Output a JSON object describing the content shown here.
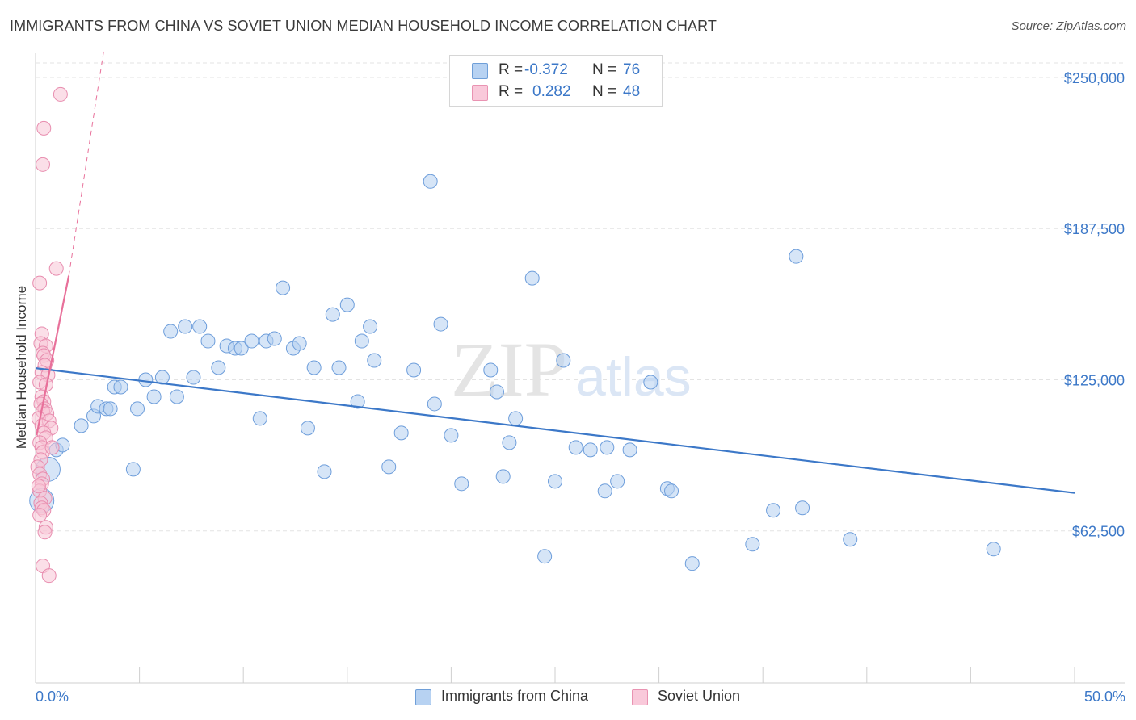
{
  "title": "IMMIGRANTS FROM CHINA VS SOVIET UNION MEDIAN HOUSEHOLD INCOME CORRELATION CHART",
  "source": "Source: ZipAtlas.com",
  "colors": {
    "blue": "#3c78c8",
    "blue_fill": "#a9c8ef",
    "pink": "#e8709a",
    "pink_fill": "#f6bcd0",
    "grid": "#e3e3e3"
  },
  "legend": {
    "series": [
      {
        "r_label": "R =",
        "r_value": "-0.372",
        "n_label": "N =",
        "n_value": "76"
      },
      {
        "r_label": "R =",
        "r_value": "0.282",
        "n_label": "N =",
        "n_value": "48"
      }
    ]
  },
  "bottom_legend": {
    "china": "Immigrants from China",
    "soviet": "Soviet Union"
  },
  "watermark": {
    "zip": "ZIP",
    "atlas": "atlas"
  },
  "chart_data": {
    "type": "scatter",
    "title": "IMMIGRANTS FROM CHINA VS SOVIET UNION MEDIAN HOUSEHOLD INCOME CORRELATION CHART",
    "xlabel": "",
    "ylabel": "Median Household Income",
    "xlim": [
      0,
      50
    ],
    "ylim": [
      0,
      262000
    ],
    "x_tick_labels": [
      "0.0%",
      "50.0%"
    ],
    "y_ticks": [
      62500,
      125000,
      187500,
      250000
    ],
    "y_tick_labels": [
      "$62,500",
      "$125,000",
      "$187,500",
      "$250,000"
    ],
    "grid": true,
    "series": [
      {
        "name": "Immigrants from China",
        "color": "#3c78c8",
        "trend": {
          "x": [
            0,
            50
          ],
          "y": [
            129800,
            78200
          ]
        },
        "points": [
          {
            "x": 0.3,
            "y": 75000,
            "big": true
          },
          {
            "x": 0.6,
            "y": 88000,
            "big": true
          },
          {
            "x": 1.0,
            "y": 96000
          },
          {
            "x": 1.3,
            "y": 98000
          },
          {
            "x": 2.2,
            "y": 106000
          },
          {
            "x": 2.8,
            "y": 110000
          },
          {
            "x": 3.0,
            "y": 114000
          },
          {
            "x": 3.4,
            "y": 113000
          },
          {
            "x": 3.6,
            "y": 113000
          },
          {
            "x": 3.8,
            "y": 122000
          },
          {
            "x": 4.1,
            "y": 122000
          },
          {
            "x": 4.7,
            "y": 88000
          },
          {
            "x": 4.9,
            "y": 113000
          },
          {
            "x": 5.3,
            "y": 125000
          },
          {
            "x": 5.7,
            "y": 118000
          },
          {
            "x": 6.1,
            "y": 126000
          },
          {
            "x": 6.5,
            "y": 145000
          },
          {
            "x": 6.8,
            "y": 118000
          },
          {
            "x": 7.2,
            "y": 147000
          },
          {
            "x": 7.6,
            "y": 126000
          },
          {
            "x": 7.9,
            "y": 147000
          },
          {
            "x": 8.3,
            "y": 141000
          },
          {
            "x": 8.8,
            "y": 130000
          },
          {
            "x": 9.2,
            "y": 139000
          },
          {
            "x": 9.6,
            "y": 138000
          },
          {
            "x": 9.9,
            "y": 138000
          },
          {
            "x": 10.4,
            "y": 141000
          },
          {
            "x": 10.8,
            "y": 109000
          },
          {
            "x": 11.1,
            "y": 141000
          },
          {
            "x": 11.5,
            "y": 142000
          },
          {
            "x": 11.9,
            "y": 163000
          },
          {
            "x": 12.4,
            "y": 138000
          },
          {
            "x": 12.7,
            "y": 140000
          },
          {
            "x": 13.1,
            "y": 105000
          },
          {
            "x": 13.4,
            "y": 130000
          },
          {
            "x": 13.9,
            "y": 87000
          },
          {
            "x": 14.3,
            "y": 152000
          },
          {
            "x": 14.6,
            "y": 130000
          },
          {
            "x": 15.0,
            "y": 156000
          },
          {
            "x": 15.5,
            "y": 116000
          },
          {
            "x": 15.7,
            "y": 141000
          },
          {
            "x": 16.1,
            "y": 147000
          },
          {
            "x": 16.3,
            "y": 133000
          },
          {
            "x": 17.0,
            "y": 89000
          },
          {
            "x": 17.6,
            "y": 103000
          },
          {
            "x": 18.2,
            "y": 129000
          },
          {
            "x": 19.0,
            "y": 207000
          },
          {
            "x": 19.2,
            "y": 115000
          },
          {
            "x": 19.5,
            "y": 148000
          },
          {
            "x": 20.0,
            "y": 102000
          },
          {
            "x": 20.5,
            "y": 82000
          },
          {
            "x": 21.9,
            "y": 129000
          },
          {
            "x": 22.2,
            "y": 120000
          },
          {
            "x": 22.5,
            "y": 85000
          },
          {
            "x": 22.8,
            "y": 99000
          },
          {
            "x": 23.1,
            "y": 109000
          },
          {
            "x": 23.9,
            "y": 167000
          },
          {
            "x": 24.5,
            "y": 52000
          },
          {
            "x": 25.4,
            "y": 133000
          },
          {
            "x": 25.0,
            "y": 83000
          },
          {
            "x": 26.0,
            "y": 97000
          },
          {
            "x": 26.7,
            "y": 96000
          },
          {
            "x": 27.4,
            "y": 79000
          },
          {
            "x": 27.5,
            "y": 97000
          },
          {
            "x": 28.0,
            "y": 83000
          },
          {
            "x": 28.6,
            "y": 96000
          },
          {
            "x": 29.6,
            "y": 124000
          },
          {
            "x": 30.4,
            "y": 80000
          },
          {
            "x": 30.6,
            "y": 79000
          },
          {
            "x": 31.6,
            "y": 49000
          },
          {
            "x": 34.5,
            "y": 57000
          },
          {
            "x": 35.5,
            "y": 71000
          },
          {
            "x": 36.6,
            "y": 176000
          },
          {
            "x": 36.9,
            "y": 72000
          },
          {
            "x": 39.2,
            "y": 59000
          },
          {
            "x": 46.1,
            "y": 55000
          }
        ]
      },
      {
        "name": "Soviet Union",
        "color": "#e8709a",
        "trend_solid": {
          "x": [
            0.05,
            1.6
          ],
          "y": [
            102000,
            168000
          ]
        },
        "trend_dashed": {
          "x": [
            1.6,
            3.3
          ],
          "y": [
            168000,
            262000
          ]
        },
        "points": [
          {
            "x": 1.2,
            "y": 243000
          },
          {
            "x": 0.4,
            "y": 229000
          },
          {
            "x": 0.35,
            "y": 214000
          },
          {
            "x": 1.0,
            "y": 171000
          },
          {
            "x": 0.2,
            "y": 165000
          },
          {
            "x": 0.3,
            "y": 144000
          },
          {
            "x": 0.25,
            "y": 140000
          },
          {
            "x": 0.5,
            "y": 139000
          },
          {
            "x": 0.35,
            "y": 136000
          },
          {
            "x": 0.4,
            "y": 135000
          },
          {
            "x": 0.55,
            "y": 133000
          },
          {
            "x": 0.45,
            "y": 131000
          },
          {
            "x": 0.3,
            "y": 128000
          },
          {
            "x": 0.6,
            "y": 127000
          },
          {
            "x": 0.2,
            "y": 124000
          },
          {
            "x": 0.5,
            "y": 123000
          },
          {
            "x": 0.3,
            "y": 118000
          },
          {
            "x": 0.4,
            "y": 116000
          },
          {
            "x": 0.25,
            "y": 115000
          },
          {
            "x": 0.45,
            "y": 113000
          },
          {
            "x": 0.35,
            "y": 112000
          },
          {
            "x": 0.55,
            "y": 111000
          },
          {
            "x": 0.15,
            "y": 109000
          },
          {
            "x": 0.65,
            "y": 108000
          },
          {
            "x": 0.3,
            "y": 106000
          },
          {
            "x": 0.75,
            "y": 105000
          },
          {
            "x": 0.4,
            "y": 103000
          },
          {
            "x": 0.5,
            "y": 101000
          },
          {
            "x": 0.2,
            "y": 99000
          },
          {
            "x": 0.3,
            "y": 97000
          },
          {
            "x": 0.35,
            "y": 95000
          },
          {
            "x": 0.8,
            "y": 97000
          },
          {
            "x": 0.25,
            "y": 92000
          },
          {
            "x": 0.1,
            "y": 89000
          },
          {
            "x": 0.2,
            "y": 86000
          },
          {
            "x": 0.35,
            "y": 84000
          },
          {
            "x": 0.3,
            "y": 82000
          },
          {
            "x": 0.2,
            "y": 79000
          },
          {
            "x": 0.45,
            "y": 76000
          },
          {
            "x": 0.25,
            "y": 74000
          },
          {
            "x": 0.3,
            "y": 72000
          },
          {
            "x": 0.4,
            "y": 71000
          },
          {
            "x": 0.2,
            "y": 69000
          },
          {
            "x": 0.5,
            "y": 64000
          },
          {
            "x": 0.45,
            "y": 62000
          },
          {
            "x": 0.35,
            "y": 48000
          },
          {
            "x": 0.65,
            "y": 44000
          },
          {
            "x": 0.15,
            "y": 81000
          }
        ]
      }
    ]
  }
}
